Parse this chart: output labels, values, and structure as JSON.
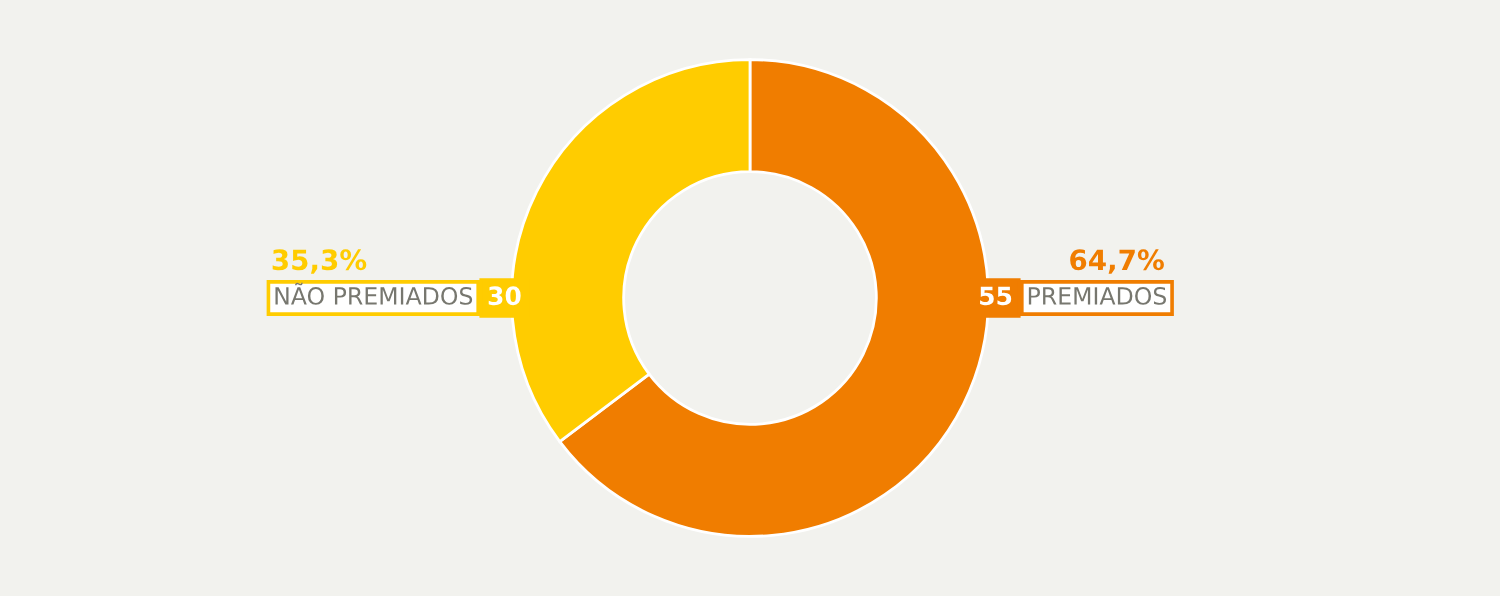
{
  "chart_data": {
    "type": "donut",
    "categories": [
      "PREMIADOS",
      "NÃO PREMIADOS"
    ],
    "values": [
      55,
      30
    ],
    "colors": [
      "#f07d00",
      "#ffcc00"
    ],
    "data_labels": true,
    "annotations": [
      "64,7%",
      "35,3%"
    ]
  }
}
